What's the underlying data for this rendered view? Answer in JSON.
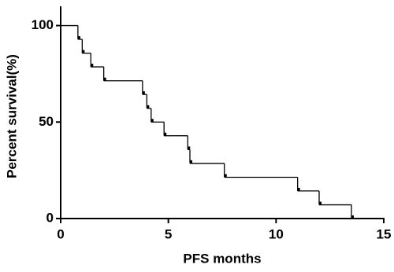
{
  "chart_data": {
    "type": "step",
    "xlabel": "PFS  months",
    "ylabel": "Percent survival(%)",
    "x": [
      0,
      0.8,
      1.0,
      1.4,
      2.0,
      3.8,
      4.0,
      4.2,
      4.8,
      5.9,
      6.0,
      7.6,
      11.0,
      12.0,
      13.5
    ],
    "values": [
      100,
      92.9,
      85.7,
      78.6,
      71.4,
      64.3,
      57.1,
      50,
      42.9,
      35.7,
      28.6,
      21.4,
      14.3,
      7.1,
      0
    ],
    "color": "#000000",
    "xlim": [
      0,
      15
    ],
    "xticks": [
      0,
      5,
      10,
      15
    ],
    "ylim": [
      0,
      110
    ],
    "yticks": [
      0,
      50,
      100
    ]
  }
}
